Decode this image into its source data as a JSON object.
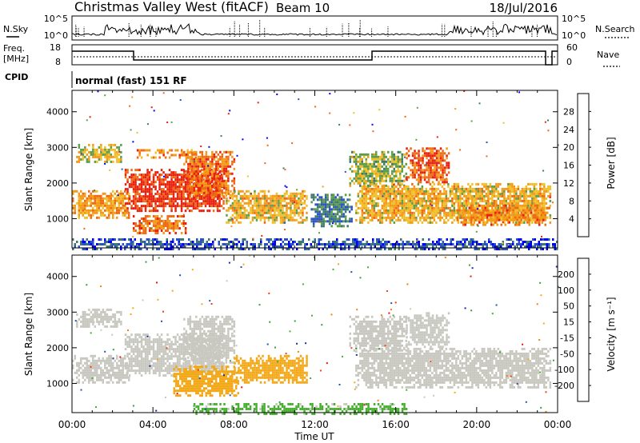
{
  "header": {
    "station": "Christmas Valley West (fitACF)",
    "beam": "Beam 10",
    "date": "18/Jul/2016"
  },
  "noise_panel": {
    "left_label": "N.Sky",
    "right_label": "N.Search",
    "left_ticks": [
      "10^5",
      "10^0"
    ],
    "right_ticks": [
      "10^5",
      "10^0"
    ]
  },
  "freq_panel": {
    "label_line1": "Freq.",
    "label_line2": "[MHz]",
    "right_label": "Nave",
    "left_ticks": [
      "18",
      "8"
    ],
    "right_ticks": [
      "60",
      "0"
    ]
  },
  "cpid": {
    "label": "CPID",
    "text": "normal (fast) 151 RF"
  },
  "time_axis": {
    "label": "Time UT",
    "ticks": [
      "00:00",
      "04:00",
      "08:00",
      "12:00",
      "16:00",
      "20:00",
      "00:00"
    ]
  },
  "chart_data": [
    {
      "type": "heatmap",
      "title": "",
      "xlabel": "Time UT",
      "ylabel": "Slant Range [km]",
      "xlim": [
        0,
        24
      ],
      "ylim": [
        180,
        4600
      ],
      "y_ticks": [
        "1000",
        "2000",
        "3000",
        "4000"
      ],
      "colorbar": {
        "label": "Power [dB]",
        "ticks": [
          "4",
          "8",
          "12",
          "16",
          "20",
          "24",
          "28"
        ],
        "range": [
          0,
          32
        ],
        "colors": [
          "#0000ff",
          "#2a52c8",
          "#3d7a6e",
          "#5e9e48",
          "#f0c02a",
          "#f39a18",
          "#ef6a14",
          "#e82010"
        ]
      },
      "regions": [
        {
          "t0": 0.0,
          "t1": 2.8,
          "r0": 1000,
          "r1": 1800,
          "v": 22
        },
        {
          "t0": 0.2,
          "t1": 2.4,
          "r0": 2600,
          "r1": 3100,
          "v": 18
        },
        {
          "t0": 2.6,
          "t1": 7.5,
          "r0": 1200,
          "r1": 2400,
          "v": 30
        },
        {
          "t0": 3.0,
          "t1": 5.6,
          "r0": 600,
          "r1": 1100,
          "v": 25
        },
        {
          "t0": 3.2,
          "t1": 6.2,
          "r0": 2700,
          "r1": 2950,
          "v": 24
        },
        {
          "t0": 5.5,
          "t1": 8.0,
          "r0": 1600,
          "r1": 2900,
          "v": 26
        },
        {
          "t0": 7.6,
          "t1": 11.6,
          "r0": 900,
          "r1": 1800,
          "v": 20
        },
        {
          "t0": 11.8,
          "t1": 13.8,
          "r0": 800,
          "r1": 1700,
          "v": 10
        },
        {
          "t0": 13.7,
          "t1": 16.5,
          "r0": 1900,
          "r1": 2900,
          "v": 16
        },
        {
          "t0": 14.0,
          "t1": 23.6,
          "r0": 900,
          "r1": 2000,
          "v": 20
        },
        {
          "t0": 16.5,
          "t1": 18.6,
          "r0": 2000,
          "r1": 3000,
          "v": 27
        },
        {
          "t0": 19.0,
          "t1": 23.6,
          "r0": 800,
          "r1": 1400,
          "v": 24
        },
        {
          "t0": 0.0,
          "t1": 24.0,
          "r0": 180,
          "r1": 450,
          "v": 6
        }
      ]
    },
    {
      "type": "heatmap",
      "title": "",
      "xlabel": "Time UT",
      "ylabel": "Slant Range [km]",
      "xlim": [
        0,
        24
      ],
      "ylim": [
        180,
        4600
      ],
      "y_ticks": [
        "1000",
        "2000",
        "3000",
        "4000"
      ],
      "colorbar": {
        "label": "Velocity [m s⁻¹]",
        "ticks": [
          "200",
          "100",
          "50",
          "15",
          "-15",
          "-50",
          "-100",
          "-200"
        ],
        "range": [
          -250,
          250
        ],
        "colors": [
          "#e81010",
          "#f04010",
          "#f08010",
          "#f3a818",
          "#c8c8c0",
          "#48b030",
          "#3a9a48",
          "#2a52a8",
          "#1a2aa0"
        ]
      },
      "regions": [
        {
          "t0": 0.0,
          "t1": 2.8,
          "r0": 1000,
          "r1": 1800,
          "v": 0
        },
        {
          "t0": 0.2,
          "t1": 2.4,
          "r0": 2600,
          "r1": 3100,
          "v": 0
        },
        {
          "t0": 2.6,
          "t1": 7.5,
          "r0": 1200,
          "r1": 2400,
          "v": 0
        },
        {
          "t0": 5.5,
          "t1": 8.0,
          "r0": 1600,
          "r1": 2900,
          "v": 0
        },
        {
          "t0": 5.0,
          "t1": 8.2,
          "r0": 650,
          "r1": 1500,
          "v": -60
        },
        {
          "t0": 8.0,
          "t1": 11.6,
          "r0": 1000,
          "r1": 1800,
          "v": -60
        },
        {
          "t0": 13.7,
          "t1": 16.5,
          "r0": 1900,
          "r1": 2900,
          "v": 0
        },
        {
          "t0": 14.0,
          "t1": 23.6,
          "r0": 900,
          "r1": 2000,
          "v": 0
        },
        {
          "t0": 16.5,
          "t1": 18.6,
          "r0": 2000,
          "r1": 3000,
          "v": 0
        },
        {
          "t0": 6.0,
          "t1": 16.5,
          "r0": 180,
          "r1": 450,
          "v": 40
        }
      ]
    }
  ]
}
